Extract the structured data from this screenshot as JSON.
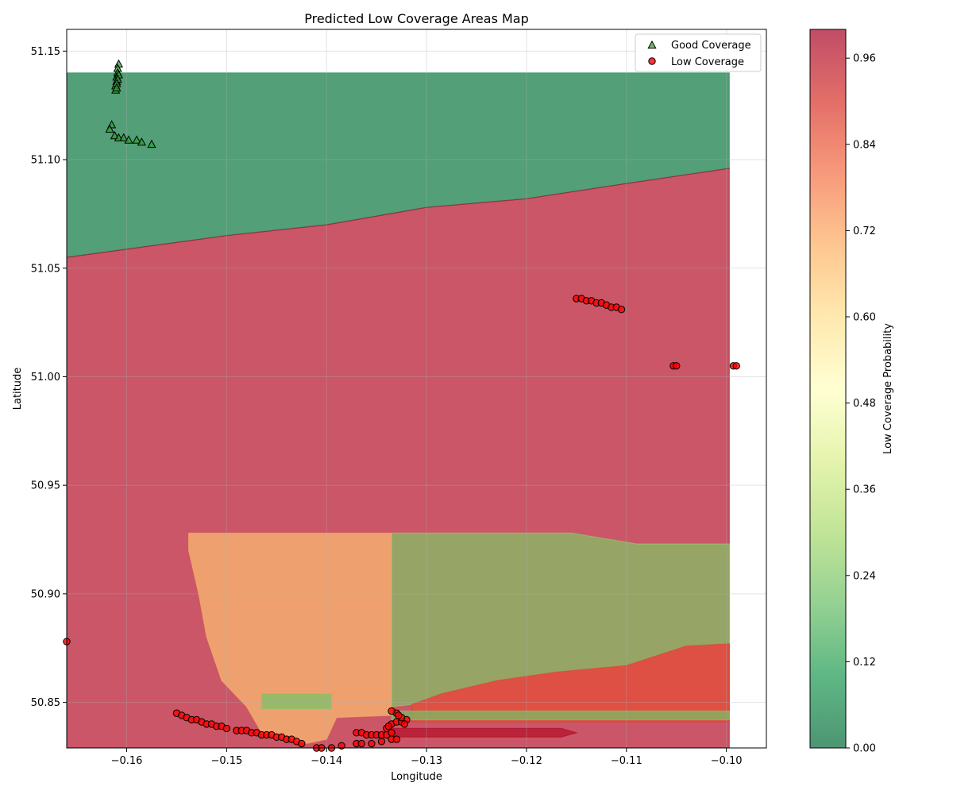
{
  "chart_data": {
    "type": "contour-scatter",
    "title": "Predicted Low Coverage Areas Map",
    "xlabel": "Longitude",
    "ylabel": "Latitude",
    "xlim": [
      -0.166,
      -0.096
    ],
    "ylim": [
      50.829,
      51.16
    ],
    "xticks": [
      -0.16,
      -0.15,
      -0.14,
      -0.13,
      -0.12,
      -0.11,
      -0.1
    ],
    "xtick_labels": [
      "−0.16",
      "−0.15",
      "−0.14",
      "−0.13",
      "−0.12",
      "−0.11",
      "−0.10"
    ],
    "yticks": [
      50.85,
      50.9,
      50.95,
      51.0,
      51.05,
      51.1,
      51.15
    ],
    "ytick_labels": [
      "50.85",
      "50.90",
      "50.95",
      "51.00",
      "51.05",
      "51.10",
      "51.15"
    ],
    "grid": true,
    "legend_position": "top-right",
    "colorbar": {
      "label": "Low Coverage Probability",
      "range": [
        0,
        1
      ],
      "ticks": [
        0.0,
        0.12,
        0.24,
        0.36,
        0.48,
        0.6,
        0.72,
        0.84,
        0.96
      ],
      "tick_labels": [
        "0.00",
        "0.12",
        "0.24",
        "0.36",
        "0.48",
        "0.60",
        "0.72",
        "0.84",
        "0.96"
      ],
      "colormap": "RdYlGn_r"
    },
    "regions": [
      {
        "probability": 0.03,
        "polygon": [
          [
            -0.166,
            51.14
          ],
          [
            -0.0997,
            51.14
          ],
          [
            -0.0997,
            51.096
          ],
          [
            -0.11,
            51.089
          ],
          [
            -0.12,
            51.082
          ],
          [
            -0.13,
            51.078
          ],
          [
            -0.14,
            51.07
          ],
          [
            -0.15,
            51.065
          ],
          [
            -0.166,
            51.055
          ]
        ]
      },
      {
        "probability": 0.97,
        "polygon": [
          [
            -0.166,
            51.055
          ],
          [
            -0.15,
            51.065
          ],
          [
            -0.14,
            51.07
          ],
          [
            -0.13,
            51.078
          ],
          [
            -0.12,
            51.082
          ],
          [
            -0.11,
            51.089
          ],
          [
            -0.0997,
            51.096
          ],
          [
            -0.0997,
            50.829
          ],
          [
            -0.166,
            50.829
          ]
        ]
      },
      {
        "probability": 0.66,
        "polygon": [
          [
            -0.1538,
            50.928
          ],
          [
            -0.1425,
            50.928
          ],
          [
            -0.1335,
            50.928
          ],
          [
            -0.1335,
            50.844
          ],
          [
            -0.139,
            50.843
          ],
          [
            -0.14,
            50.833
          ],
          [
            -0.142,
            50.831
          ],
          [
            -0.144,
            50.833
          ],
          [
            -0.1465,
            50.836
          ],
          [
            -0.148,
            50.848
          ],
          [
            -0.1505,
            50.86
          ],
          [
            -0.152,
            50.88
          ],
          [
            -0.1528,
            50.9
          ],
          [
            -0.1538,
            50.92
          ]
        ]
      },
      {
        "probability": 0.24,
        "polygon": [
          [
            -0.1335,
            50.928
          ],
          [
            -0.1155,
            50.928
          ],
          [
            -0.109,
            50.923
          ],
          [
            -0.0997,
            50.923
          ],
          [
            -0.0997,
            50.877
          ],
          [
            -0.104,
            50.876
          ],
          [
            -0.11,
            50.867
          ],
          [
            -0.117,
            50.864
          ],
          [
            -0.123,
            50.86
          ],
          [
            -0.1285,
            50.854
          ],
          [
            -0.1315,
            50.849
          ],
          [
            -0.1335,
            50.848
          ]
        ]
      },
      {
        "probability": 0.85,
        "polygon": [
          [
            -0.1315,
            50.849
          ],
          [
            -0.1285,
            50.854
          ],
          [
            -0.123,
            50.86
          ],
          [
            -0.117,
            50.864
          ],
          [
            -0.11,
            50.867
          ],
          [
            -0.104,
            50.876
          ],
          [
            -0.0997,
            50.877
          ],
          [
            -0.0997,
            50.841
          ],
          [
            -0.1315,
            50.841
          ]
        ]
      },
      {
        "probability": 0.22,
        "polygon": [
          [
            -0.1465,
            50.854
          ],
          [
            -0.1395,
            50.854
          ],
          [
            -0.1395,
            50.847
          ],
          [
            -0.1465,
            50.847
          ]
        ]
      },
      {
        "probability": 0.22,
        "polygon": [
          [
            -0.1335,
            50.846
          ],
          [
            -0.0997,
            50.846
          ],
          [
            -0.0997,
            50.842
          ],
          [
            -0.1335,
            50.842
          ]
        ]
      },
      {
        "probability": 0.97,
        "polygon": [
          [
            -0.1335,
            50.838
          ],
          [
            -0.1165,
            50.838
          ],
          [
            -0.115,
            50.836
          ],
          [
            -0.1165,
            50.834
          ],
          [
            -0.1335,
            50.834
          ]
        ]
      }
    ],
    "series": [
      {
        "name": "Good Coverage",
        "marker": "triangle",
        "color": "#2ca02c",
        "points": [
          [
            -0.1608,
            51.144
          ],
          [
            -0.1609,
            51.142
          ],
          [
            -0.1609,
            51.14
          ],
          [
            -0.161,
            51.138
          ],
          [
            -0.161,
            51.136
          ],
          [
            -0.1611,
            51.134
          ],
          [
            -0.1611,
            51.132
          ],
          [
            -0.1608,
            51.139
          ],
          [
            -0.1609,
            51.137
          ],
          [
            -0.161,
            51.135
          ],
          [
            -0.161,
            51.133
          ],
          [
            -0.1615,
            51.116
          ],
          [
            -0.1617,
            51.114
          ],
          [
            -0.1612,
            51.111
          ],
          [
            -0.1608,
            51.11
          ],
          [
            -0.1603,
            51.11
          ],
          [
            -0.1598,
            51.109
          ],
          [
            -0.159,
            51.109
          ],
          [
            -0.1585,
            51.108
          ],
          [
            -0.1575,
            51.107
          ]
        ]
      },
      {
        "name": "Low Coverage",
        "marker": "circle",
        "color": "#d62728",
        "points": [
          [
            -0.115,
            51.036
          ],
          [
            -0.1145,
            51.036
          ],
          [
            -0.114,
            51.035
          ],
          [
            -0.1135,
            51.035
          ],
          [
            -0.113,
            51.034
          ],
          [
            -0.1125,
            51.034
          ],
          [
            -0.112,
            51.033
          ],
          [
            -0.1115,
            51.032
          ],
          [
            -0.111,
            51.032
          ],
          [
            -0.1105,
            51.031
          ],
          [
            -0.1053,
            51.005
          ],
          [
            -0.105,
            51.005
          ],
          [
            -0.0993,
            51.005
          ],
          [
            -0.099,
            51.005
          ],
          [
            -0.166,
            50.878
          ],
          [
            -0.155,
            50.845
          ],
          [
            -0.1545,
            50.844
          ],
          [
            -0.154,
            50.843
          ],
          [
            -0.1535,
            50.842
          ],
          [
            -0.153,
            50.842
          ],
          [
            -0.1525,
            50.841
          ],
          [
            -0.152,
            50.84
          ],
          [
            -0.1515,
            50.84
          ],
          [
            -0.151,
            50.839
          ],
          [
            -0.1505,
            50.839
          ],
          [
            -0.15,
            50.838
          ],
          [
            -0.149,
            50.837
          ],
          [
            -0.1485,
            50.837
          ],
          [
            -0.148,
            50.837
          ],
          [
            -0.1475,
            50.836
          ],
          [
            -0.147,
            50.836
          ],
          [
            -0.1465,
            50.835
          ],
          [
            -0.146,
            50.835
          ],
          [
            -0.1455,
            50.835
          ],
          [
            -0.145,
            50.834
          ],
          [
            -0.1445,
            50.834
          ],
          [
            -0.144,
            50.833
          ],
          [
            -0.1435,
            50.833
          ],
          [
            -0.143,
            50.832
          ],
          [
            -0.1425,
            50.831
          ],
          [
            -0.141,
            50.829
          ],
          [
            -0.1405,
            50.829
          ],
          [
            -0.1395,
            50.829
          ],
          [
            -0.1385,
            50.83
          ],
          [
            -0.137,
            50.836
          ],
          [
            -0.1365,
            50.836
          ],
          [
            -0.136,
            50.835
          ],
          [
            -0.1355,
            50.835
          ],
          [
            -0.135,
            50.835
          ],
          [
            -0.1345,
            50.835
          ],
          [
            -0.134,
            50.835
          ],
          [
            -0.1335,
            50.836
          ],
          [
            -0.137,
            50.831
          ],
          [
            -0.1365,
            50.831
          ],
          [
            -0.1355,
            50.831
          ],
          [
            -0.1345,
            50.832
          ],
          [
            -0.1335,
            50.833
          ],
          [
            -0.133,
            50.833
          ],
          [
            -0.1335,
            50.84
          ],
          [
            -0.133,
            50.841
          ],
          [
            -0.1325,
            50.841
          ],
          [
            -0.132,
            50.842
          ],
          [
            -0.1325,
            50.843
          ],
          [
            -0.133,
            50.845
          ],
          [
            -0.1335,
            50.846
          ],
          [
            -0.134,
            50.838
          ],
          [
            -0.1338,
            50.839
          ],
          [
            -0.1328,
            50.844
          ],
          [
            -0.1322,
            50.84
          ]
        ]
      }
    ]
  }
}
